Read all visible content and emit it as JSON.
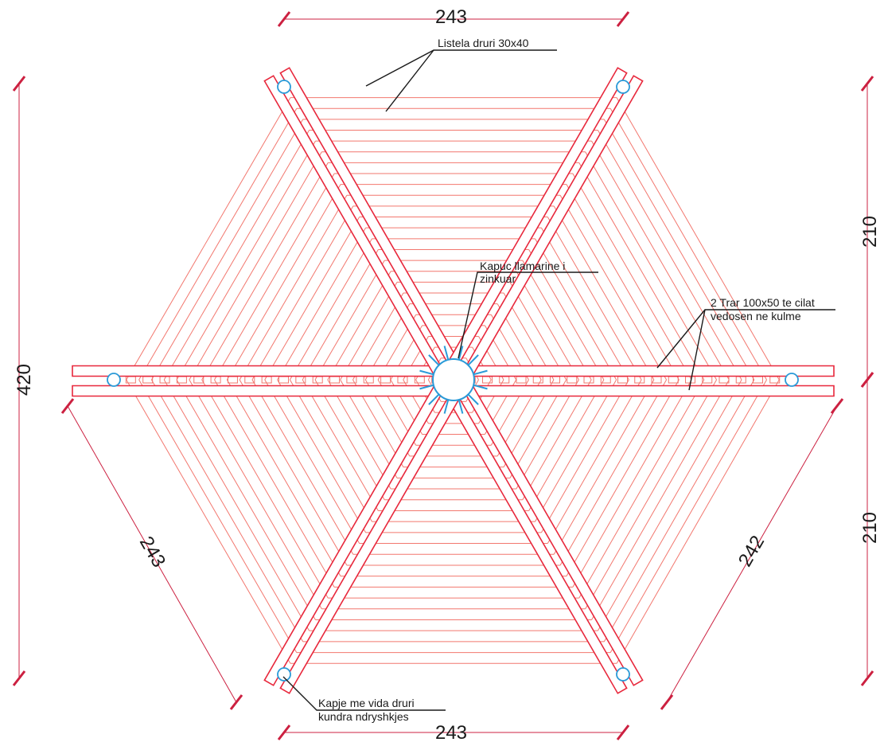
{
  "colors": {
    "structure": "#e8283c",
    "slats": "#f2776e",
    "metal": "#2a9ad8",
    "dimension": "#cc2040",
    "text": "#1a1a1a"
  },
  "dimensions": {
    "top": "243",
    "bottom": "243",
    "left_total": "420",
    "right_upper": "210",
    "right_lower": "210",
    "lower_left_edge": "243",
    "lower_right_edge": "242"
  },
  "labels": {
    "slats": "Listela druri 30x40",
    "cap_line1": "Kapuc llamarine i",
    "cap_line2": "zinkuar",
    "beams_line1": "2 Trar 100x50 te cilat",
    "beams_line2": "vedosen ne kulme",
    "screw_line1": "Kapje me vida druri",
    "screw_line2": "kundra ndryshkjes"
  }
}
